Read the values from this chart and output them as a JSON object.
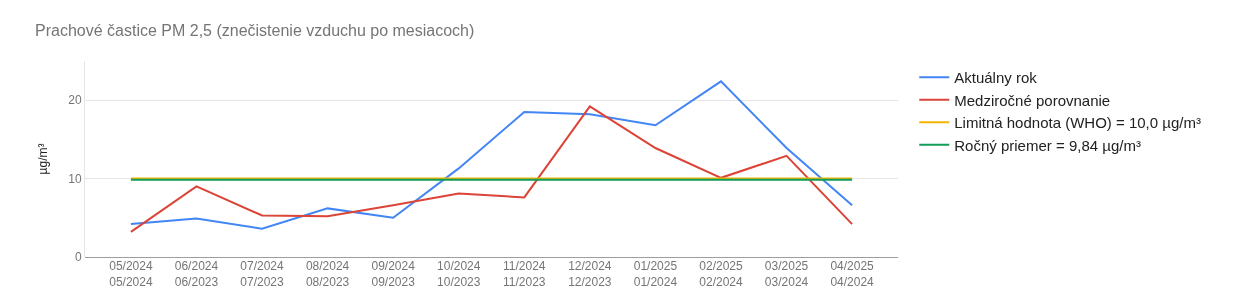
{
  "chart_data": {
    "type": "line",
    "title": "Prachové častice PM 2,5 (znečistenie vzduchu po mesiacoch)",
    "ylabel": "µg/m³",
    "categories": [
      "05/2024\n05/2024",
      "06/2024\n06/2023",
      "07/2024\n07/2023",
      "08/2024\n08/2023",
      "09/2024\n09/2023",
      "10/2024\n10/2023",
      "11/2024\n11/2023",
      "12/2024\n12/2023",
      "01/2025\n01/2024",
      "02/2025\n02/2024",
      "03/2025\n03/2024",
      "04/2025\n04/2024"
    ],
    "series": [
      {
        "name": "Aktuálny rok",
        "color": "#4285f4",
        "values": [
          4.2,
          4.9,
          3.6,
          6.2,
          5.0,
          11.3,
          18.5,
          18.2,
          16.8,
          22.4,
          13.9,
          6.6
        ]
      },
      {
        "name": "Medziročné porovnanie",
        "color": "#db4437",
        "values": [
          3.2,
          9.0,
          5.3,
          5.2,
          6.6,
          8.1,
          7.6,
          19.2,
          13.9,
          10.1,
          12.9,
          4.2
        ]
      },
      {
        "name": "Limitná hodnota (WHO) = 10,0 µg/m³",
        "color": "#f4b400",
        "values": [
          10.0,
          10.0,
          10.0,
          10.0,
          10.0,
          10.0,
          10.0,
          10.0,
          10.0,
          10.0,
          10.0,
          10.0
        ]
      },
      {
        "name": "Ročný priemer = 9,84 µg/m³",
        "color": "#0f9d58",
        "values": [
          9.84,
          9.84,
          9.84,
          9.84,
          9.84,
          9.84,
          9.84,
          9.84,
          9.84,
          9.84,
          9.84,
          9.84
        ]
      }
    ],
    "ylim": [
      0,
      25
    ],
    "yticks": [
      0,
      10,
      20
    ],
    "grid": "y",
    "legend": "right",
    "marker": "none",
    "line_style": "solid"
  }
}
